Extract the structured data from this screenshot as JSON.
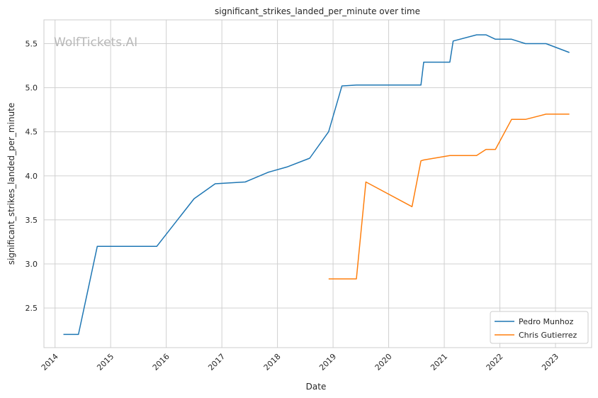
{
  "chart_data": {
    "type": "line",
    "title": "significant_strikes_landed_per_minute over time",
    "xlabel": "Date",
    "ylabel": "significant_strikes_landed_per_minute",
    "watermark": "WolfTickets.AI",
    "xlim": [
      2013.8,
      2023.65
    ],
    "ylim": [
      2.05,
      5.77
    ],
    "x_ticks": [
      2014,
      2015,
      2016,
      2017,
      2018,
      2019,
      2020,
      2021,
      2022,
      2023
    ],
    "x_tick_labels": [
      "2014",
      "2015",
      "2016",
      "2017",
      "2018",
      "2019",
      "2020",
      "2021",
      "2022",
      "2023"
    ],
    "y_ticks": [
      2.5,
      3.0,
      3.5,
      4.0,
      4.5,
      5.0,
      5.5
    ],
    "y_tick_labels": [
      "2.5",
      "3.0",
      "3.5",
      "4.0",
      "4.5",
      "5.0",
      "5.5"
    ],
    "grid": true,
    "legend_position": "bottom-right",
    "series": [
      {
        "name": "Pedro Munhoz",
        "color": "#1f77b4",
        "points": [
          [
            2014.15,
            2.2
          ],
          [
            2014.42,
            2.2
          ],
          [
            2014.76,
            3.2
          ],
          [
            2015.83,
            3.2
          ],
          [
            2016.5,
            3.74
          ],
          [
            2016.88,
            3.91
          ],
          [
            2017.42,
            3.93
          ],
          [
            2017.83,
            4.04
          ],
          [
            2018.17,
            4.1
          ],
          [
            2018.58,
            4.2
          ],
          [
            2018.92,
            4.5
          ],
          [
            2019.16,
            5.02
          ],
          [
            2019.42,
            5.03
          ],
          [
            2020.58,
            5.03
          ],
          [
            2020.63,
            5.29
          ],
          [
            2021.1,
            5.29
          ],
          [
            2021.16,
            5.53
          ],
          [
            2021.58,
            5.6
          ],
          [
            2021.75,
            5.6
          ],
          [
            2021.92,
            5.55
          ],
          [
            2022.21,
            5.55
          ],
          [
            2022.46,
            5.5
          ],
          [
            2022.83,
            5.5
          ],
          [
            2023.25,
            5.4
          ]
        ]
      },
      {
        "name": "Chris Gutierrez",
        "color": "#ff7f0e",
        "points": [
          [
            2018.92,
            2.83
          ],
          [
            2019.42,
            2.83
          ],
          [
            2019.59,
            3.93
          ],
          [
            2020.42,
            3.65
          ],
          [
            2020.58,
            4.17
          ],
          [
            2020.63,
            4.18
          ],
          [
            2021.1,
            4.23
          ],
          [
            2021.58,
            4.23
          ],
          [
            2021.75,
            4.3
          ],
          [
            2021.92,
            4.3
          ],
          [
            2022.21,
            4.64
          ],
          [
            2022.46,
            4.64
          ],
          [
            2022.83,
            4.7
          ],
          [
            2023.25,
            4.7
          ]
        ]
      }
    ]
  }
}
